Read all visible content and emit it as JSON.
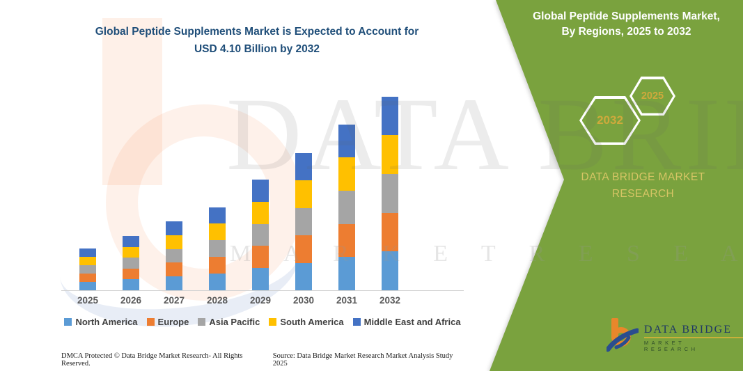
{
  "header": {
    "title_line1": "Global Peptide Supplements Market is Expected to Account for",
    "title_line2": "USD 4.10 Billion by 2032"
  },
  "panel": {
    "bg_color": "#7aa23e",
    "heading_line1": "Global Peptide Supplements Market,",
    "heading_line2": "By Regions, 2025 to 2032",
    "hexagon_back_label": "2025",
    "hexagon_front_label": "2032",
    "hexagon_text_color": "#cfa93c",
    "brand_line1": "DATA BRIDGE MARKET",
    "brand_line2": "RESEARCH",
    "brand_text_color": "#d6c565"
  },
  "chart_data": {
    "type": "bar",
    "stacked": true,
    "title": "Global Peptide Supplements Market, By Regions, 2025 to 2032",
    "unit": "USD Billion",
    "categories": [
      "2025",
      "2026",
      "2027",
      "2028",
      "2029",
      "2030",
      "2031",
      "2032"
    ],
    "series": [
      {
        "name": "North America",
        "color": "#5B9BD5",
        "values": [
          0.178,
          0.23,
          0.292,
          0.352,
          0.468,
          0.582,
          0.702,
          0.82
        ]
      },
      {
        "name": "Europe",
        "color": "#ED7D31",
        "values": [
          0.178,
          0.23,
          0.292,
          0.352,
          0.468,
          0.582,
          0.702,
          0.82
        ]
      },
      {
        "name": "Asia Pacific",
        "color": "#A5A5A5",
        "values": [
          0.178,
          0.23,
          0.292,
          0.352,
          0.468,
          0.582,
          0.702,
          0.82
        ]
      },
      {
        "name": "South America",
        "color": "#FFC000",
        "values": [
          0.178,
          0.23,
          0.292,
          0.352,
          0.468,
          0.582,
          0.702,
          0.82
        ]
      },
      {
        "name": "Middle East and Africa",
        "color": "#4472C4",
        "values": [
          0.178,
          0.23,
          0.292,
          0.352,
          0.468,
          0.582,
          0.702,
          0.82
        ]
      }
    ],
    "totals": [
      0.89,
      1.15,
      1.46,
      1.76,
      2.34,
      2.91,
      3.51,
      4.1
    ],
    "ylim": [
      0,
      4.4
    ],
    "grid": false,
    "legend_position": "bottom",
    "xlabel": "",
    "ylabel": ""
  },
  "watermark": {
    "line1": "DATA BRIDGE",
    "line2": "M A R K E T  R E S E A R C H"
  },
  "logo": {
    "name": "DATA BRIDGE",
    "subtitle": "MARKET RESEARCH"
  },
  "footer": {
    "dmca": "DMCA Protected © Data Bridge Market Research-  All Rights Reserved.",
    "source": "Source: Data Bridge Market Research  Market Analysis Study 2025"
  }
}
